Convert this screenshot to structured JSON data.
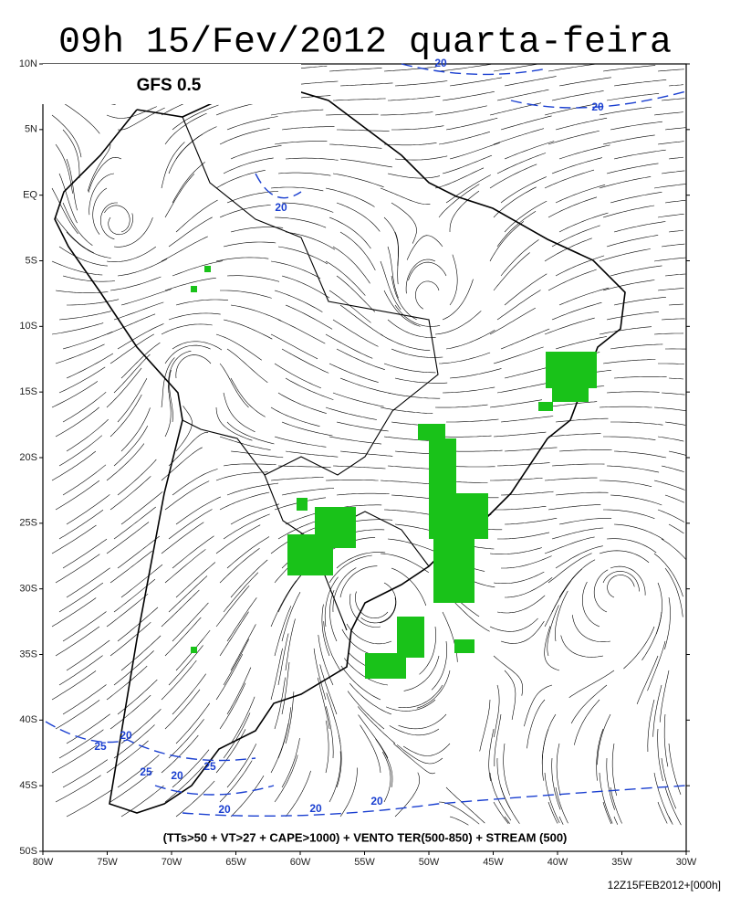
{
  "title": "09h 15/Fev/2012 quarta-feira",
  "model_label": "GFS 0.5",
  "latitude_labels": [
    "10N",
    "5N",
    "EQ",
    "5S",
    "10S",
    "15S",
    "20S",
    "25S",
    "30S",
    "35S",
    "40S",
    "45S",
    "50S"
  ],
  "longitude_labels": [
    "80W",
    "75W",
    "70W",
    "65W",
    "60W",
    "55W",
    "50W",
    "45W",
    "40W",
    "35W",
    "30W"
  ],
  "contour_labels": [
    "20",
    "20",
    "20",
    "20",
    "20",
    "20",
    "20",
    "20",
    "25",
    "25",
    "25"
  ],
  "legend": "(TTs>50 + VT>27 + CAPE>1000) + VENTO TER(500-850) + STREAM (500)",
  "footer": "12Z15FEB2012+[000h]"
}
